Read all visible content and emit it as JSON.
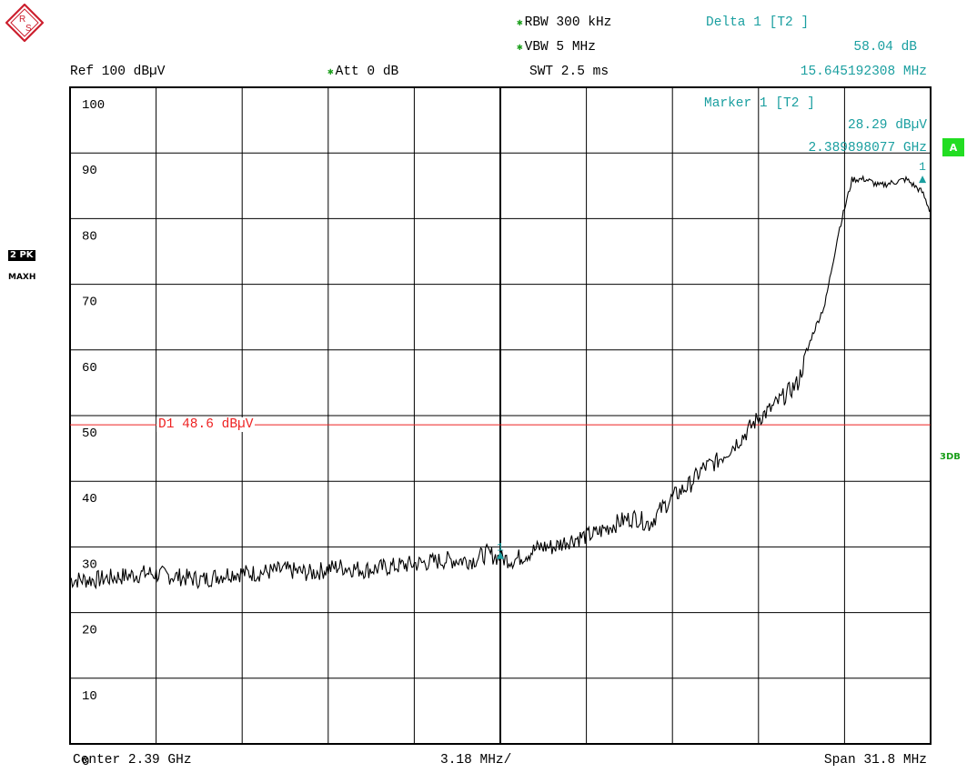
{
  "header": {
    "rbw": "RBW 300 kHz",
    "vbw": "VBW 5 MHz",
    "swt": "SWT 2.5 ms",
    "ref": "Ref  100 dBµV",
    "att": "Att   0 dB"
  },
  "delta_marker": {
    "title": "Delta 1 [T2 ]",
    "value": "58.04 dB",
    "freq": "15.645192308 MHz"
  },
  "marker": {
    "title": "Marker 1 [T2 ]",
    "value": "28.29 dBµV",
    "freq": "2.389898077 GHz",
    "label": "1"
  },
  "display_line": {
    "label": "D1 48.6 dBµV",
    "level": 48.6
  },
  "footer": {
    "center": "Center  2.39 GHz",
    "div": "3.18 MHz/",
    "span": "Span  31.8 MHz"
  },
  "side": {
    "a": "A",
    "trace": "2 PK",
    "trace2": "MAXH",
    "db3": "3DB"
  },
  "logo": {
    "text": "R&S"
  },
  "colors": {
    "trace": "#000000",
    "marker": "#1a9fa0",
    "display_line": "#ee2222",
    "grid": "#000000",
    "badge": "#22dd22"
  },
  "chart_data": {
    "type": "line",
    "ylim": [
      0,
      100
    ],
    "xlim": [
      -15.9,
      15.9
    ],
    "x_unit": "MHz offset from center",
    "y_unit": "dBµV",
    "y_tick_labels": [
      "100",
      "90",
      "80",
      "70",
      "60",
      "50",
      "40",
      "30",
      "20",
      "10",
      "0"
    ],
    "series": [
      {
        "x": [
          -15.9,
          -15,
          -14,
          -13,
          -12,
          -11,
          -10,
          -9,
          -8,
          -7,
          -6,
          -5,
          -4,
          -3,
          -2,
          -1,
          -0.5,
          0,
          0.5,
          1,
          1.5,
          2,
          2.5,
          3,
          3.5,
          4,
          4.5,
          5,
          5.5,
          6,
          6.5,
          7,
          7.5,
          8,
          8.5,
          9,
          9.5,
          10,
          10.5,
          11,
          11.5,
          12,
          12.5,
          13,
          13.5,
          14,
          14.5,
          15,
          15.3,
          15.6,
          15.9
        ],
        "y": [
          25,
          25,
          25.5,
          26,
          25.5,
          25,
          26,
          26,
          26.5,
          26,
          27,
          26.5,
          27,
          27.5,
          28,
          28,
          29,
          28.3,
          28,
          29,
          30,
          30,
          31,
          31.5,
          32,
          33,
          34,
          34.5,
          33.5,
          36,
          38,
          39.5,
          42,
          43,
          45,
          47,
          49.5,
          51,
          53,
          55,
          62,
          67,
          78,
          86,
          86,
          85,
          85.5,
          86,
          85,
          84,
          81
        ]
      }
    ]
  }
}
